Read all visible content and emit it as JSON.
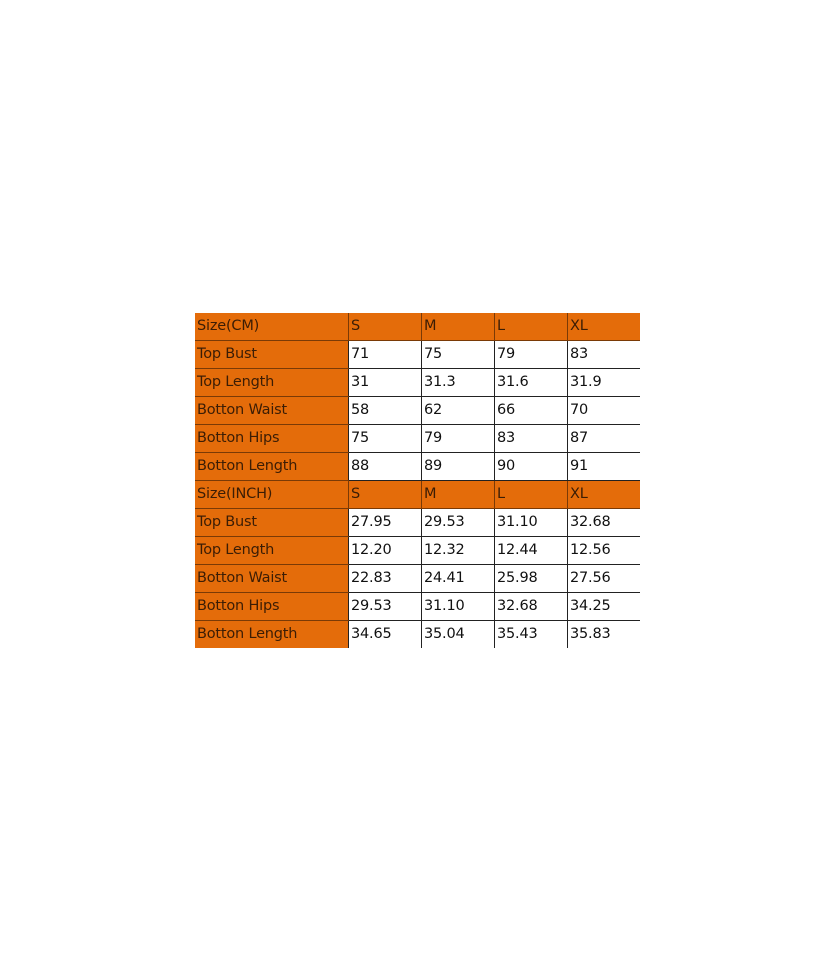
{
  "accent_color": "#E46C0A",
  "sections": [
    {
      "header": [
        "Size(CM)",
        "S",
        "M",
        "L",
        "XL"
      ],
      "rows": [
        {
          "label": "Top Bust",
          "values": [
            "71",
            "75",
            "79",
            "83"
          ]
        },
        {
          "label": "Top Length",
          "values": [
            "31",
            "31.3",
            "31.6",
            "31.9"
          ]
        },
        {
          "label": "Botton Waist",
          "values": [
            "58",
            "62",
            "66",
            "70"
          ]
        },
        {
          "label": "Botton Hips",
          "values": [
            "75",
            "79",
            "83",
            "87"
          ]
        },
        {
          "label": "Botton Length",
          "values": [
            "88",
            "89",
            "90",
            "91"
          ]
        }
      ]
    },
    {
      "header": [
        "Size(INCH)",
        "S",
        "M",
        "L",
        "XL"
      ],
      "rows": [
        {
          "label": "Top Bust",
          "values": [
            "27.95",
            "29.53",
            "31.10",
            "32.68"
          ]
        },
        {
          "label": "Top Length",
          "values": [
            "12.20",
            "12.32",
            "12.44",
            "12.56"
          ]
        },
        {
          "label": "Botton Waist",
          "values": [
            "22.83",
            "24.41",
            "25.98",
            "27.56"
          ]
        },
        {
          "label": "Botton Hips",
          "values": [
            "29.53",
            "31.10",
            "32.68",
            "34.25"
          ]
        },
        {
          "label": "Botton Length",
          "values": [
            "34.65",
            "35.04",
            "35.43",
            "35.83"
          ]
        }
      ]
    }
  ]
}
